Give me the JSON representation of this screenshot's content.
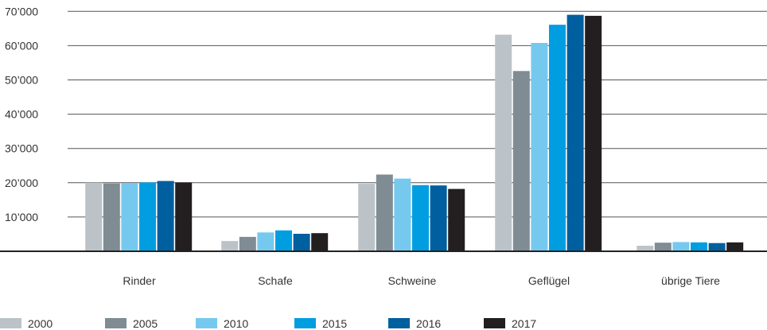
{
  "chart_data": {
    "type": "bar",
    "title": "",
    "xlabel": "",
    "ylabel": "",
    "ylim": [
      0,
      70000
    ],
    "yticks": [
      10000,
      20000,
      30000,
      40000,
      50000,
      60000,
      70000
    ],
    "ytick_labels": [
      "10’000",
      "20’000",
      "30’000",
      "40’000",
      "50’000",
      "60’000",
      "70’000"
    ],
    "grid": true,
    "legend_position": "bottom-left",
    "categories": [
      "Rinder",
      "Schafe",
      "Schweine",
      "Geflügel",
      "übrige Tiere"
    ],
    "series": [
      {
        "name": "2000",
        "color": "#bcc3c8",
        "values": [
          20000,
          3000,
          19700,
          63200,
          1600
        ]
      },
      {
        "name": "2005",
        "color": "#7f8c94",
        "values": [
          19800,
          4200,
          22400,
          52600,
          2500
        ]
      },
      {
        "name": "2010",
        "color": "#76c9ee",
        "values": [
          19900,
          5500,
          21200,
          60800,
          2700
        ]
      },
      {
        "name": "2015",
        "color": "#009ee0",
        "values": [
          20100,
          6100,
          19300,
          66100,
          2600
        ]
      },
      {
        "name": "2016",
        "color": "#005f9e",
        "values": [
          20500,
          5100,
          19200,
          69000,
          2400
        ]
      },
      {
        "name": "2017",
        "color": "#231f20",
        "values": [
          20100,
          5300,
          18200,
          68700,
          2600
        ]
      }
    ]
  }
}
